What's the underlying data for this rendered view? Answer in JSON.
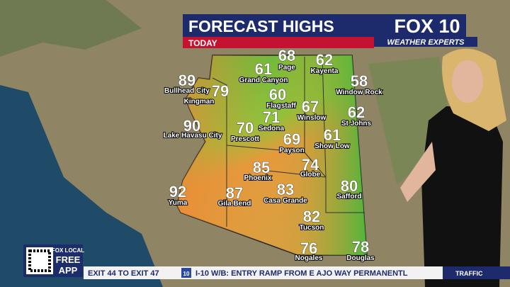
{
  "header": {
    "title": "FORECAST HIGHS",
    "subtitle": "TODAY"
  },
  "logo": {
    "brand": "FOX 10",
    "tagline": "WEATHER EXPERTS"
  },
  "cities": [
    {
      "name": "Page",
      "temp": 68
    },
    {
      "name": "Kayenta",
      "temp": 62
    },
    {
      "name": "Grand Canyon",
      "temp": 61
    },
    {
      "name": "Window Rock",
      "temp": 58
    },
    {
      "name": "Kingman",
      "temp": 79
    },
    {
      "name": "Flagstaff",
      "temp": 60
    },
    {
      "name": "Bullhead City",
      "temp": 89
    },
    {
      "name": "Winslow",
      "temp": 67
    },
    {
      "name": "St Johns",
      "temp": 62
    },
    {
      "name": "Sedona",
      "temp": 71
    },
    {
      "name": "Lake Havasu City",
      "temp": 90
    },
    {
      "name": "Prescott",
      "temp": 70
    },
    {
      "name": "Payson",
      "temp": 69
    },
    {
      "name": "Show Low",
      "temp": 61
    },
    {
      "name": "Phoenix",
      "temp": 85
    },
    {
      "name": "Globe",
      "temp": 74
    },
    {
      "name": "Safford",
      "temp": 80
    },
    {
      "name": "Yuma",
      "temp": 92
    },
    {
      "name": "Gila Bend",
      "temp": 87
    },
    {
      "name": "Casa Grande",
      "temp": 83
    },
    {
      "name": "Tucson",
      "temp": 82
    },
    {
      "name": "Nogales",
      "temp": 76
    },
    {
      "name": "Douglas",
      "temp": 78
    }
  ],
  "app_badge": {
    "brand": "FOX LOCAL",
    "line1": "FREE",
    "line2": "APP"
  },
  "ticker": {
    "text": "EXIT 44 TO EXIT 47",
    "shield": "10",
    "text2": "I-10 W/B: ENTRY RAMP FROM E AJO WAY PERMANENTL",
    "section": "TRAFFIC"
  }
}
